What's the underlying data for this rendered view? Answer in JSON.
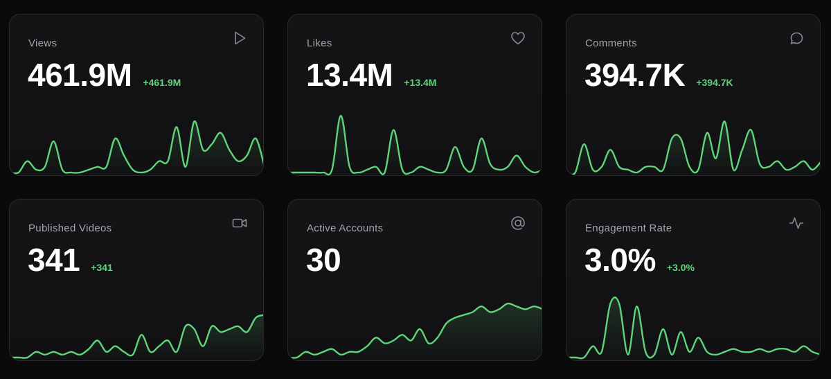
{
  "colors": {
    "background": "#0a0a0b",
    "card": "#121214",
    "border": "#2a2a2e",
    "label": "#a3a3aa",
    "value": "#ffffff",
    "accent": "#5fd47a",
    "icon": "#8a8a92"
  },
  "cards": [
    {
      "label": "Views",
      "value": "461.9M",
      "delta": "+461.9M",
      "icon": "play-icon",
      "trend": [
        0,
        0,
        0.2,
        0.05,
        0.1,
        0.55,
        0.05,
        0,
        0,
        0.05,
        0.1,
        0.1,
        0.6,
        0.3,
        0.05,
        0,
        0.05,
        0.2,
        0.2,
        0.8,
        0.1,
        0.9,
        0.4,
        0.5,
        0.7,
        0.4,
        0.2,
        0.3,
        0.6,
        0.1
      ]
    },
    {
      "label": "Likes",
      "value": "13.4M",
      "delta": "+13.4M",
      "icon": "heart-icon",
      "trend": [
        0,
        0,
        0,
        0,
        0,
        0.05,
        1.0,
        0.1,
        0,
        0.05,
        0.1,
        0,
        0.75,
        0.05,
        0,
        0.1,
        0.05,
        0,
        0.05,
        0.45,
        0.1,
        0.05,
        0.6,
        0.15,
        0.05,
        0.1,
        0.3,
        0.1,
        0,
        0.05
      ]
    },
    {
      "label": "Comments",
      "value": "394.7K",
      "delta": "+394.7K",
      "icon": "message-circle-icon",
      "trend": [
        0,
        0,
        0.5,
        0.05,
        0.1,
        0.4,
        0.1,
        0.05,
        0,
        0.1,
        0.1,
        0.05,
        0.6,
        0.6,
        0.1,
        0.05,
        0.7,
        0.25,
        0.9,
        0.05,
        0.4,
        0.75,
        0.15,
        0.1,
        0.2,
        0.05,
        0.1,
        0.2,
        0.05,
        0.2
      ]
    },
    {
      "label": "Published Videos",
      "value": "341",
      "delta": "+341",
      "icon": "video-icon",
      "trend": [
        0,
        0,
        0,
        0.1,
        0.05,
        0.1,
        0.05,
        0.1,
        0.05,
        0.15,
        0.3,
        0.1,
        0.2,
        0.1,
        0.05,
        0.4,
        0.1,
        0.2,
        0.3,
        0.1,
        0.55,
        0.5,
        0.2,
        0.55,
        0.45,
        0.5,
        0.55,
        0.45,
        0.7,
        0.75
      ]
    },
    {
      "label": "Active Accounts",
      "value": "30",
      "delta": "",
      "icon": "at-sign-icon",
      "trend": [
        0,
        0,
        0.1,
        0.05,
        0.1,
        0.15,
        0.05,
        0.1,
        0.1,
        0.2,
        0.35,
        0.25,
        0.3,
        0.4,
        0.3,
        0.5,
        0.25,
        0.35,
        0.6,
        0.7,
        0.75,
        0.8,
        0.9,
        0.8,
        0.85,
        0.95,
        0.9,
        0.85,
        0.9,
        0.85
      ]
    },
    {
      "label": "Engagement Rate",
      "value": "3.0%",
      "delta": "+3.0%",
      "icon": "activity-icon",
      "trend": [
        0,
        0,
        0,
        0.2,
        0.1,
        0.95,
        0.95,
        0.05,
        0.9,
        0.1,
        0.05,
        0.5,
        0.05,
        0.45,
        0.1,
        0.35,
        0.1,
        0.05,
        0.1,
        0.15,
        0.1,
        0.1,
        0.15,
        0.1,
        0.15,
        0.15,
        0.1,
        0.2,
        0.1,
        0.05
      ]
    }
  ]
}
